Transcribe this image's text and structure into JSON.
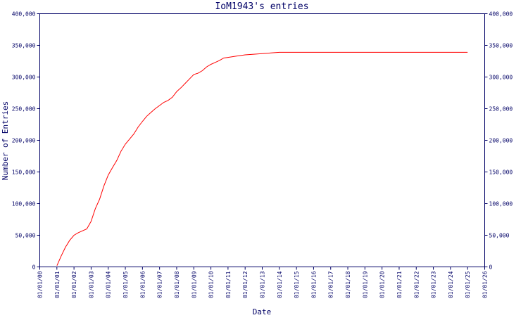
{
  "colors": {
    "background": "#ffffff",
    "axis": "#000066",
    "text": "#000066",
    "series": "#ff0000"
  },
  "chart_data": {
    "type": "line",
    "title": "IoM1943's entries",
    "xlabel": "Date",
    "ylabel": "Number of Entries",
    "grid": false,
    "legend": "none",
    "x_tick_labels": [
      "01/01/00",
      "01/01/01",
      "01/01/02",
      "01/01/03",
      "01/01/04",
      "01/01/05",
      "01/01/06",
      "01/01/07",
      "01/01/08",
      "01/01/09",
      "01/01/10",
      "01/01/11",
      "01/01/12",
      "01/01/13",
      "01/01/14",
      "01/01/15",
      "01/01/16",
      "01/01/17",
      "01/01/18",
      "01/01/19",
      "01/01/20",
      "01/01/21",
      "01/01/22",
      "01/01/23",
      "01/01/24",
      "01/01/25",
      "01/01/26"
    ],
    "y_ticks": [
      0,
      50000,
      100000,
      150000,
      200000,
      250000,
      300000,
      350000,
      400000
    ],
    "y_tick_labels": [
      "0",
      "50,000",
      "100,000",
      "150,000",
      "200,000",
      "250,000",
      "300,000",
      "350,000",
      "400,000"
    ],
    "ylim": [
      0,
      400000
    ],
    "xlim": [
      "2000-01-01",
      "2026-01-01"
    ],
    "series": [
      {
        "x": [
          "2001-01-01",
          "2001-04-01",
          "2001-07-01",
          "2001-10-01",
          "2002-01-01",
          "2002-04-01",
          "2002-07-01",
          "2002-10-01",
          "2003-01-01",
          "2003-04-01",
          "2003-07-01",
          "2003-10-01",
          "2004-01-01",
          "2004-04-01",
          "2004-07-01",
          "2004-10-01",
          "2005-01-01",
          "2005-04-01",
          "2005-07-01",
          "2005-10-01",
          "2006-01-01",
          "2006-04-01",
          "2006-07-01",
          "2006-10-01",
          "2007-01-01",
          "2007-04-01",
          "2007-07-01",
          "2007-10-01",
          "2008-01-01",
          "2008-04-01",
          "2008-07-01",
          "2008-10-01",
          "2009-01-01",
          "2009-04-01",
          "2009-07-01",
          "2009-10-01",
          "2010-01-01",
          "2010-04-01",
          "2010-07-01",
          "2010-10-01",
          "2011-01-01",
          "2011-07-01",
          "2012-01-01",
          "2012-07-01",
          "2013-01-01",
          "2013-07-01",
          "2014-01-01",
          "2015-01-01",
          "2016-01-01",
          "2018-01-01",
          "2020-01-01",
          "2022-01-01",
          "2024-01-01",
          "2025-01-01"
        ],
        "values": [
          2000,
          17000,
          31000,
          42000,
          50000,
          54000,
          57000,
          60000,
          72000,
          92000,
          107000,
          128000,
          145000,
          157000,
          168000,
          183000,
          194000,
          202000,
          210000,
          221000,
          230000,
          238000,
          244000,
          250000,
          255000,
          260000,
          263000,
          268000,
          277000,
          283000,
          290000,
          297000,
          304000,
          306000,
          310000,
          316000,
          320000,
          323000,
          326000,
          330000,
          331000,
          333000,
          335000,
          336000,
          337000,
          338000,
          339000,
          339000,
          339000,
          339000,
          339000,
          339000,
          339000,
          339000
        ]
      }
    ]
  }
}
